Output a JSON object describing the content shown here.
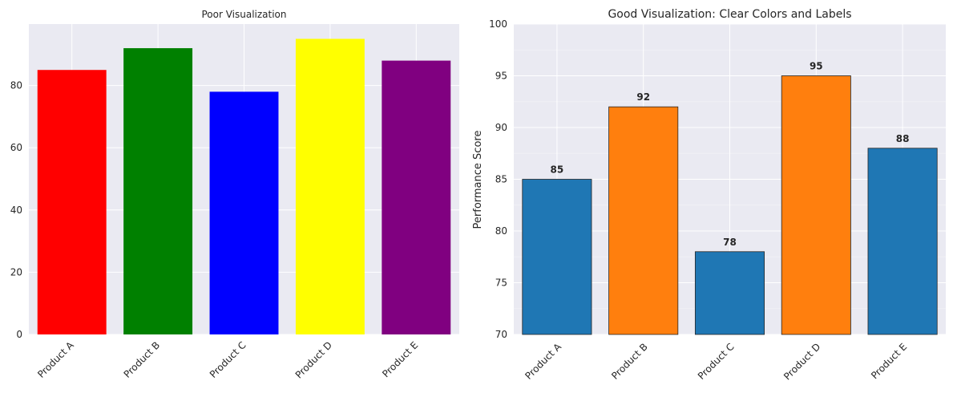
{
  "chart_data": [
    {
      "type": "bar",
      "title": "Poor Visualization",
      "xlabel": "",
      "ylabel": "",
      "categories": [
        "Product A",
        "Product B",
        "Product C",
        "Product D",
        "Product E"
      ],
      "values": [
        85,
        92,
        78,
        95,
        88
      ],
      "colors": [
        "#ff0000",
        "#008000",
        "#0000ff",
        "#ffff00",
        "#800080"
      ],
      "ylim": [
        0,
        99.75
      ],
      "yticks": [
        0,
        20,
        40,
        60,
        80
      ],
      "xtick_rotation": 45,
      "grid": true,
      "value_labels": false
    },
    {
      "type": "bar",
      "title": "Good Visualization: Clear Colors and Labels",
      "xlabel": "",
      "ylabel": "Performance Score",
      "categories": [
        "Product A",
        "Product B",
        "Product C",
        "Product D",
        "Product E"
      ],
      "values": [
        85,
        92,
        78,
        95,
        88
      ],
      "colors": [
        "#1f77b4",
        "#ff7f0e",
        "#1f77b4",
        "#ff7f0e",
        "#1f77b4"
      ],
      "edge_color": "#262626",
      "ylim": [
        70,
        100
      ],
      "yticks": [
        70,
        75,
        80,
        85,
        90,
        95,
        100
      ],
      "xtick_rotation": 45,
      "grid": true,
      "value_labels": true,
      "value_label_text": [
        "85",
        "92",
        "78",
        "95",
        "88"
      ]
    }
  ]
}
